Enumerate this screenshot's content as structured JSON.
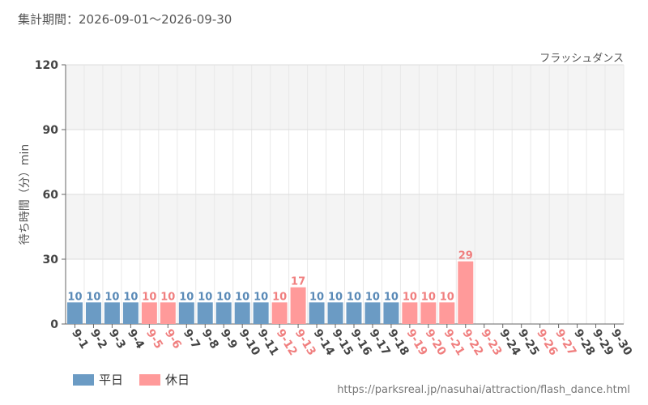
{
  "header": {
    "period": "集計期間：2026-09-01～2026-09-30",
    "attraction": "フラッシュダンス"
  },
  "colors": {
    "weekday": "#6b9bc4",
    "holiday": "#ff9a9a",
    "weekday_label": "#5a8ab7",
    "holiday_label": "#f07f7f",
    "axis_text": "#444444",
    "band": "#f4f4f4",
    "grid": "#dddddd"
  },
  "legend": {
    "weekday": "平日",
    "holiday": "休日"
  },
  "source": "https://parksreal.jp/nasuhai/attraction/flash_dance.html",
  "chart_data": {
    "type": "bar",
    "ylabel": "待ち時間（分）min",
    "ylim": [
      0,
      120
    ],
    "yticks": [
      0,
      30,
      60,
      90,
      120
    ],
    "grid": true,
    "legend_position": "bottom-left",
    "categories": [
      "9-1",
      "9-2",
      "9-3",
      "9-4",
      "9-5",
      "9-6",
      "9-7",
      "9-8",
      "9-9",
      "9-10",
      "9-11",
      "9-12",
      "9-13",
      "9-14",
      "9-15",
      "9-16",
      "9-17",
      "9-18",
      "9-19",
      "9-20",
      "9-21",
      "9-22",
      "9-23",
      "9-24",
      "9-25",
      "9-26",
      "9-27",
      "9-28",
      "9-29",
      "9-30"
    ],
    "values": [
      10,
      10,
      10,
      10,
      10,
      10,
      10,
      10,
      10,
      10,
      10,
      10,
      17,
      10,
      10,
      10,
      10,
      10,
      10,
      10,
      10,
      29,
      null,
      null,
      null,
      null,
      null,
      null,
      null,
      null
    ],
    "day_type": [
      "weekday",
      "weekday",
      "weekday",
      "weekday",
      "holiday",
      "holiday",
      "weekday",
      "weekday",
      "weekday",
      "weekday",
      "weekday",
      "holiday",
      "holiday",
      "weekday",
      "weekday",
      "weekday",
      "weekday",
      "weekday",
      "holiday",
      "holiday",
      "holiday",
      "holiday",
      "holiday",
      "weekday",
      "weekday",
      "holiday",
      "holiday",
      "weekday",
      "weekday",
      "weekday"
    ]
  }
}
